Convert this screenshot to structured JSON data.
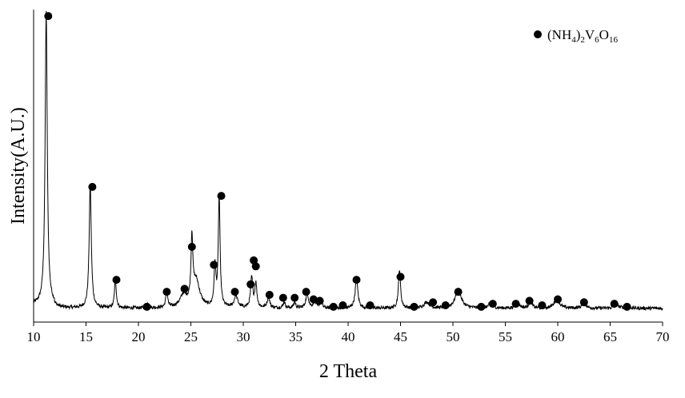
{
  "chart_data": {
    "type": "line",
    "title": "",
    "xlabel": "2 Theta",
    "ylabel": "Intensity(A.U.)",
    "xlim": [
      10,
      70
    ],
    "ylim": [
      0,
      100
    ],
    "x_ticks": [
      "10",
      "15",
      "20",
      "25",
      "30",
      "35",
      "40",
      "45",
      "50",
      "55",
      "60",
      "65",
      "70"
    ],
    "grid": false,
    "legend": {
      "placement": "top-right",
      "marker": "filled-circle",
      "label_parts": [
        "(NH",
        "4",
        ")",
        "2",
        "V",
        "6",
        "O",
        "16"
      ]
    },
    "series": [
      {
        "name": "(NH4)2V6O16",
        "baseline": 3,
        "peaks": [
          {
            "x": 11.2,
            "h": 98,
            "w": 0.12
          },
          {
            "x": 15.4,
            "h": 41,
            "w": 0.12
          },
          {
            "x": 17.8,
            "h": 10,
            "w": 0.1
          },
          {
            "x": 20.9,
            "h": 1.5,
            "w": 0.12
          },
          {
            "x": 22.7,
            "h": 6,
            "w": 0.1
          },
          {
            "x": 24.3,
            "h": 4,
            "w": 0.4
          },
          {
            "x": 25.1,
            "h": 21,
            "w": 0.1
          },
          {
            "x": 25.5,
            "h": 9,
            "w": 0.4
          },
          {
            "x": 27.3,
            "h": 14,
            "w": 0.1
          },
          {
            "x": 27.7,
            "h": 37,
            "w": 0.1
          },
          {
            "x": 29.3,
            "h": 4,
            "w": 0.2
          },
          {
            "x": 30.8,
            "h": 10,
            "w": 0.12
          },
          {
            "x": 31.2,
            "h": 8,
            "w": 0.12
          },
          {
            "x": 32.4,
            "h": 3.5,
            "w": 0.15
          },
          {
            "x": 33.9,
            "h": 2,
            "w": 0.12
          },
          {
            "x": 34.9,
            "h": 2,
            "w": 0.12
          },
          {
            "x": 36.1,
            "h": 5,
            "w": 0.15
          },
          {
            "x": 36.8,
            "h": 2,
            "w": 0.15
          },
          {
            "x": 37.4,
            "h": 2,
            "w": 0.15
          },
          {
            "x": 40.8,
            "h": 10,
            "w": 0.15
          },
          {
            "x": 44.9,
            "h": 13,
            "w": 0.12
          },
          {
            "x": 47.5,
            "h": 2,
            "w": 0.3
          },
          {
            "x": 50.5,
            "h": 6,
            "w": 0.35
          },
          {
            "x": 53.6,
            "h": 2,
            "w": 0.2
          },
          {
            "x": 56.2,
            "h": 1.5,
            "w": 0.25
          },
          {
            "x": 57.4,
            "h": 3,
            "w": 0.15
          },
          {
            "x": 59.9,
            "h": 3,
            "w": 0.3
          },
          {
            "x": 62.5,
            "h": 2,
            "w": 0.2
          },
          {
            "x": 65.6,
            "h": 1.5,
            "w": 0.2
          },
          {
            "x": 66.6,
            "h": 1,
            "w": 0.2
          }
        ],
        "markers": [
          {
            "x": 11.4,
            "y": 100.5
          },
          {
            "x": 15.6,
            "y": 43.5
          },
          {
            "x": 17.9,
            "y": 12.5
          },
          {
            "x": 20.8,
            "y": 3.5
          },
          {
            "x": 22.7,
            "y": 8.5
          },
          {
            "x": 24.4,
            "y": 9.5
          },
          {
            "x": 25.1,
            "y": 23.5
          },
          {
            "x": 27.2,
            "y": 17.5
          },
          {
            "x": 27.9,
            "y": 40.5
          },
          {
            "x": 29.2,
            "y": 8.5
          },
          {
            "x": 30.7,
            "y": 11
          },
          {
            "x": 31.0,
            "y": 19
          },
          {
            "x": 31.2,
            "y": 17
          },
          {
            "x": 32.5,
            "y": 7.5
          },
          {
            "x": 33.8,
            "y": 6.5
          },
          {
            "x": 34.9,
            "y": 6.5
          },
          {
            "x": 36.0,
            "y": 8.5
          },
          {
            "x": 36.7,
            "y": 6
          },
          {
            "x": 37.3,
            "y": 5.5
          },
          {
            "x": 38.6,
            "y": 3.5
          },
          {
            "x": 39.5,
            "y": 4
          },
          {
            "x": 40.8,
            "y": 12.5
          },
          {
            "x": 42.1,
            "y": 4
          },
          {
            "x": 45.0,
            "y": 13.5
          },
          {
            "x": 46.3,
            "y": 3.5
          },
          {
            "x": 48.1,
            "y": 5
          },
          {
            "x": 49.3,
            "y": 4
          },
          {
            "x": 50.5,
            "y": 8.5
          },
          {
            "x": 52.7,
            "y": 3.5
          },
          {
            "x": 53.8,
            "y": 4.5
          },
          {
            "x": 56.0,
            "y": 4.5
          },
          {
            "x": 57.3,
            "y": 5.5
          },
          {
            "x": 58.5,
            "y": 4
          },
          {
            "x": 60.0,
            "y": 6
          },
          {
            "x": 62.5,
            "y": 5
          },
          {
            "x": 65.4,
            "y": 4.5
          },
          {
            "x": 66.6,
            "y": 3.5
          }
        ]
      }
    ]
  }
}
